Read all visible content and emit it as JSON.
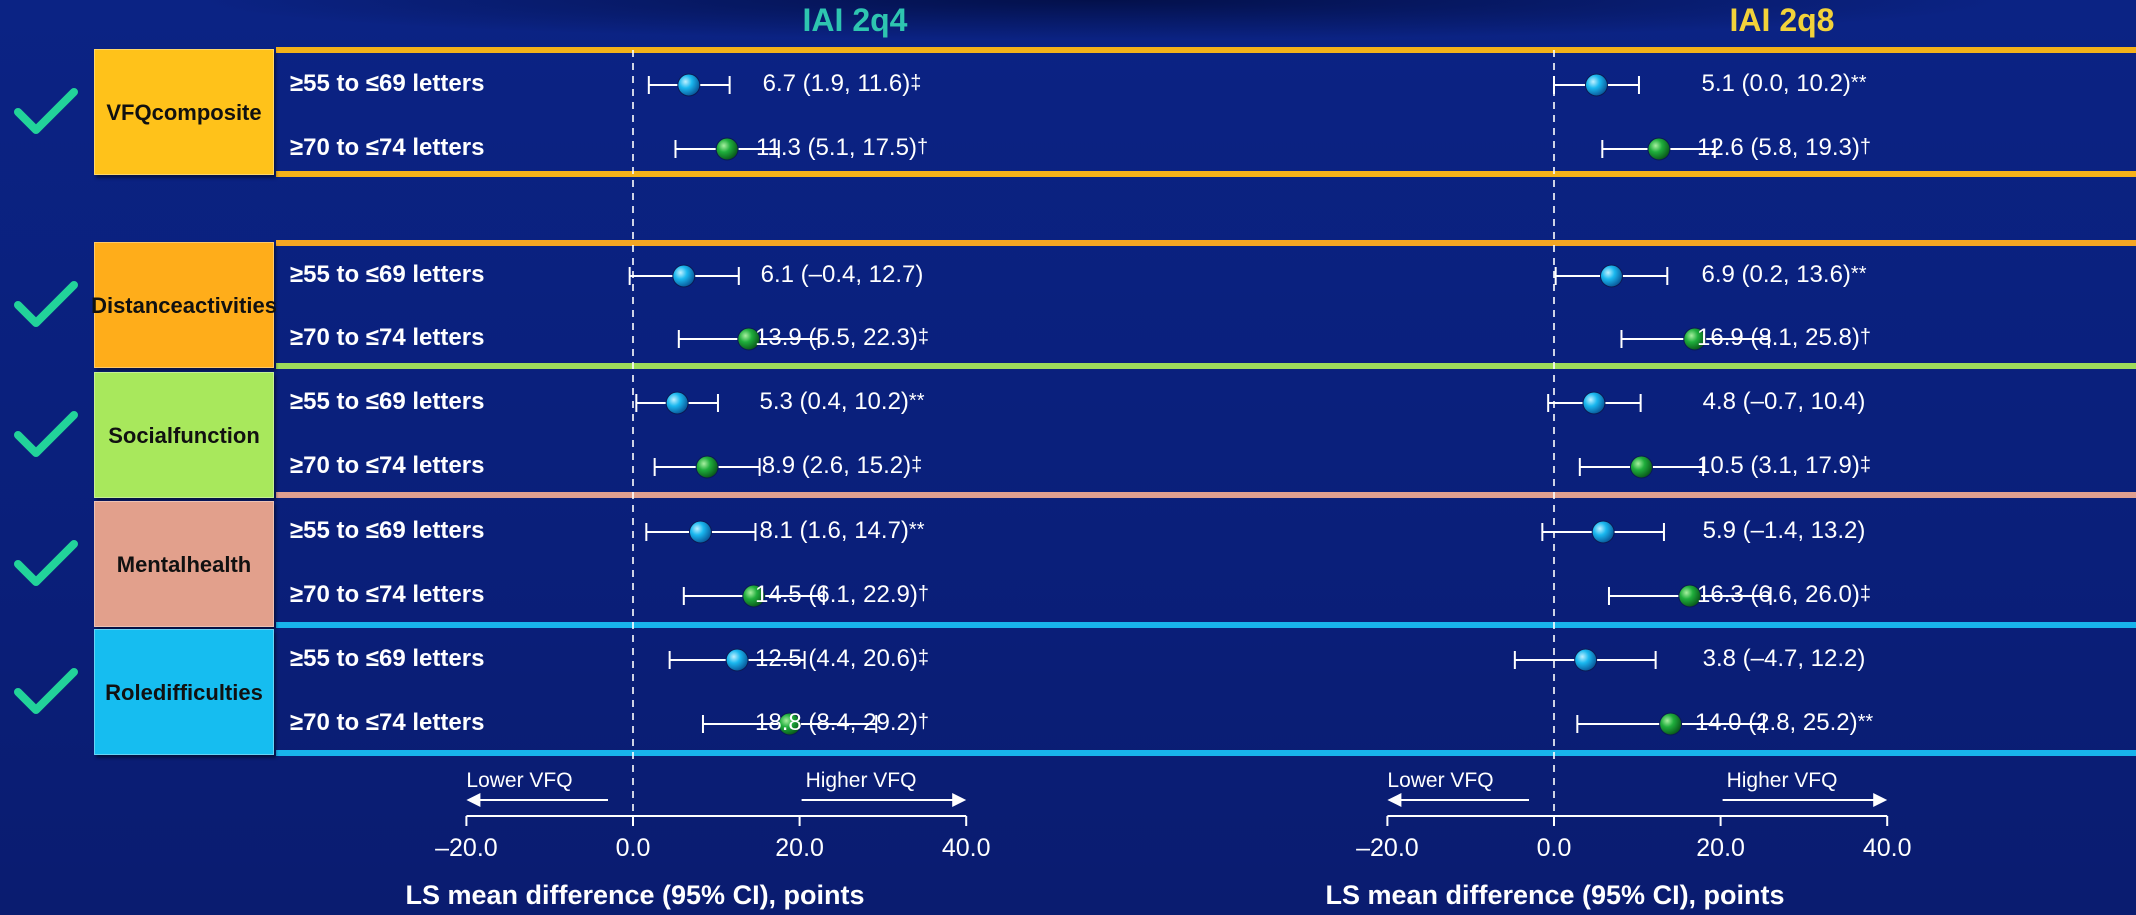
{
  "chart_data": {
    "type": "forest",
    "panels": [
      {
        "title": "IAI 2q4",
        "title_color": "#2ec5b0",
        "xlabel": "LS mean difference (95%  CI), points",
        "xlim": [
          -20,
          40
        ],
        "ticks": [
          "–20.0",
          "0.0",
          "20.0",
          "40.0"
        ],
        "tick_values": [
          -20,
          0,
          20,
          40
        ],
        "lower_label": "Lower VFQ",
        "higher_label": "Higher VFQ",
        "rows": [
          {
            "estimate": 6.7,
            "low": 1.9,
            "high": 11.6,
            "ci_text": "6.7 (1.9, 11.6)",
            "sym": "‡"
          },
          {
            "estimate": 11.3,
            "low": 5.1,
            "high": 17.5,
            "ci_text": "11.3 (5.1, 17.5)",
            "sym": "†"
          },
          {
            "estimate": 6.1,
            "low": -0.4,
            "high": 12.7,
            "ci_text": "6.1 (–0.4, 12.7)",
            "sym": ""
          },
          {
            "estimate": 13.9,
            "low": 5.5,
            "high": 22.3,
            "ci_text": "13.9 (5.5, 22.3)",
            "sym": "‡"
          },
          {
            "estimate": 5.3,
            "low": 0.4,
            "high": 10.2,
            "ci_text": "5.3 (0.4, 10.2)",
            "sym": "**"
          },
          {
            "estimate": 8.9,
            "low": 2.6,
            "high": 15.2,
            "ci_text": "8.9 (2.6, 15.2)",
            "sym": "‡"
          },
          {
            "estimate": 8.1,
            "low": 1.6,
            "high": 14.7,
            "ci_text": "8.1 (1.6, 14.7)",
            "sym": "**"
          },
          {
            "estimate": 14.5,
            "low": 6.1,
            "high": 22.9,
            "ci_text": "14.5 (6.1, 22.9)",
            "sym": "†"
          },
          {
            "estimate": 12.5,
            "low": 4.4,
            "high": 20.6,
            "ci_text": "12.5 (4.4, 20.6)",
            "sym": "‡"
          },
          {
            "estimate": 18.8,
            "low": 8.4,
            "high": 29.2,
            "ci_text": "18.8 (8.4, 29.2)",
            "sym": "†"
          }
        ]
      },
      {
        "title": "IAI 2q8",
        "title_color": "#f2d23a",
        "xlabel": "LS mean difference (95%  CI), points",
        "xlim": [
          -20,
          40
        ],
        "ticks": [
          "–20.0",
          "0.0",
          "20.0",
          "40.0"
        ],
        "tick_values": [
          -20,
          0,
          20,
          40
        ],
        "lower_label": "Lower VFQ",
        "higher_label": "Higher VFQ",
        "rows": [
          {
            "estimate": 5.1,
            "low": 0.0,
            "high": 10.2,
            "ci_text": "5.1 (0.0, 10.2)",
            "sym": "**"
          },
          {
            "estimate": 12.6,
            "low": 5.8,
            "high": 19.3,
            "ci_text": "12.6 (5.8, 19.3)",
            "sym": "†"
          },
          {
            "estimate": 6.9,
            "low": 0.2,
            "high": 13.6,
            "ci_text": "6.9 (0.2, 13.6)",
            "sym": "**"
          },
          {
            "estimate": 16.9,
            "low": 8.1,
            "high": 25.8,
            "ci_text": "16.9 (8.1, 25.8)",
            "sym": "†"
          },
          {
            "estimate": 4.8,
            "low": -0.7,
            "high": 10.4,
            "ci_text": "4.8 (–0.7, 10.4)",
            "sym": ""
          },
          {
            "estimate": 10.5,
            "low": 3.1,
            "high": 17.9,
            "ci_text": "10.5 (3.1, 17.9)",
            "sym": "‡"
          },
          {
            "estimate": 5.9,
            "low": -1.4,
            "high": 13.2,
            "ci_text": "5.9 (–1.4, 13.2)",
            "sym": ""
          },
          {
            "estimate": 16.3,
            "low": 6.6,
            "high": 26.0,
            "ci_text": "16.3 (6.6, 26.0)",
            "sym": "‡"
          },
          {
            "estimate": 3.8,
            "low": -4.7,
            "high": 12.2,
            "ci_text": "3.8 (–4.7, 12.2)",
            "sym": ""
          },
          {
            "estimate": 14.0,
            "low": 2.8,
            "high": 25.2,
            "ci_text": "14.0 (2.8, 25.2)",
            "sym": "**"
          }
        ]
      }
    ],
    "row_labels": [
      "≥55 to ≤69 letters",
      "≥70 to ≤74 letters",
      "≥55 to ≤69 letters",
      "≥70 to ≤74 letters",
      "≥55 to ≤69 letters",
      "≥70 to ≤74 letters",
      "≥55 to ≤69 letters",
      "≥70 to ≤74 letters",
      "≥55 to ≤69 letters",
      "≥70 to ≤74 letters"
    ],
    "categories": [
      {
        "label_line1": "VFQ",
        "label_line2": "composite",
        "color": "#ffc21a",
        "band_color": "#f4b21a"
      },
      {
        "label_line1": "Distance",
        "label_line2": "activities",
        "color": "#ffad1a",
        "band_color": "#f5a623"
      },
      {
        "label_line1": "Social",
        "label_line2": "function",
        "color": "#a8e85c",
        "band_color": "#9edc5a"
      },
      {
        "label_line1": "Mental",
        "label_line2": "health",
        "color": "#e2a08c",
        "band_color": "#e0a090"
      },
      {
        "label_line1": "Role",
        "label_line2": "difficulties",
        "color": "#16bdf0",
        "band_color": "#18b4ec"
      }
    ],
    "marker_colors": {
      "first_row": "#1ab8ef",
      "second_row": "#1fae3c"
    },
    "check_color": "#22d39a"
  }
}
